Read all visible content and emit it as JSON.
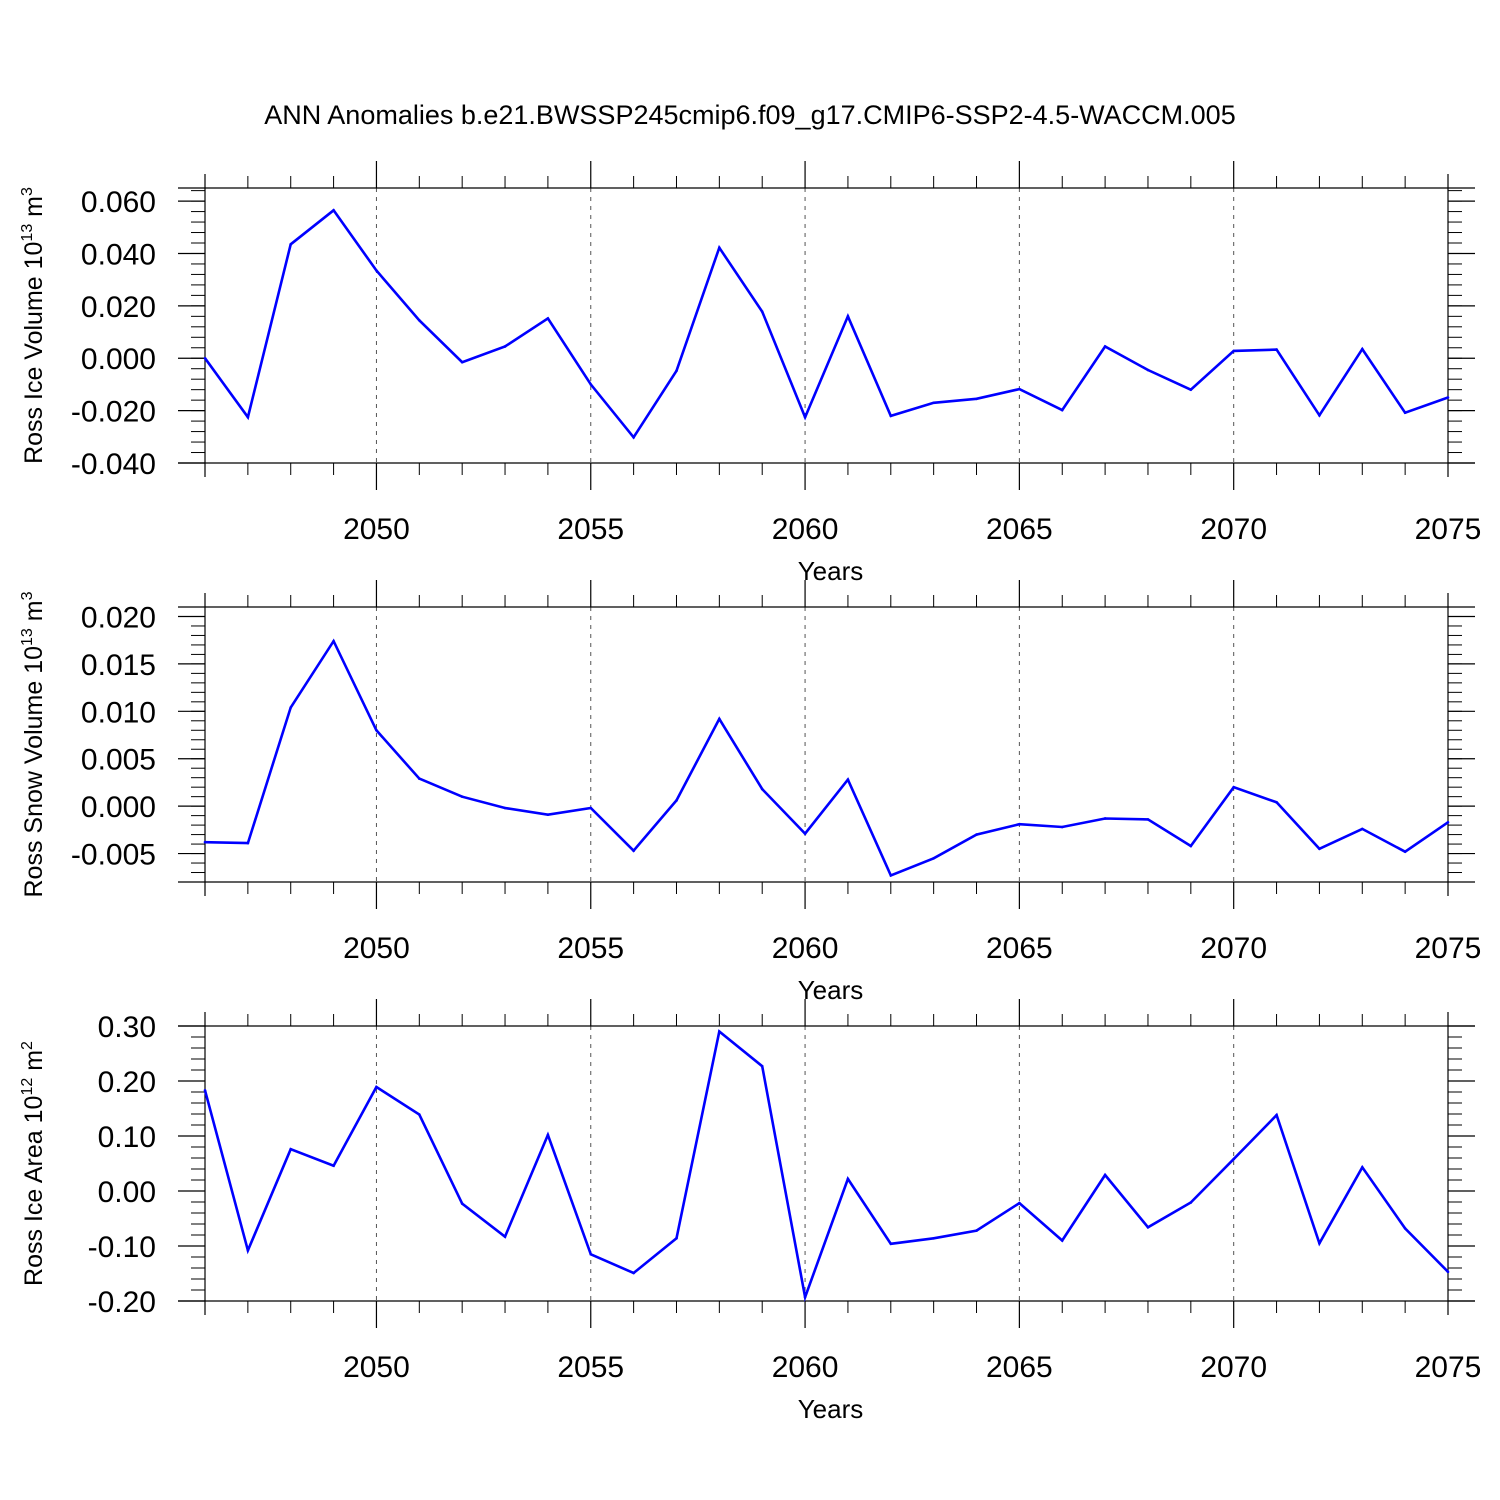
{
  "title": "ANN Anomalies b.e21.BWSSP245cmip6.f09_g17.CMIP6-SSP2-4.5-WACCM.005",
  "line_color": "#0000ff",
  "chart_data": [
    {
      "type": "line",
      "xlabel": "Years",
      "ylabel": {
        "text": "Ross Ice Volume 10",
        "exp": "13",
        "unit": " m",
        "unit_exp": "3"
      },
      "xlim": [
        2046,
        2075
      ],
      "ylim": [
        -0.04,
        0.065
      ],
      "x_ticks": [
        2050,
        2055,
        2060,
        2065,
        2070,
        2075
      ],
      "x_tick_labels": [
        "2050",
        "2055",
        "2060",
        "2065",
        "2070",
        "2075"
      ],
      "y_ticks": [
        0.06,
        0.04,
        0.02,
        0.0,
        -0.02,
        -0.04
      ],
      "y_tick_labels": [
        "0.060",
        "0.040",
        "0.020",
        "0.000",
        "-0.020",
        "-0.040"
      ],
      "grid": "vertical dashed at major x ticks",
      "x": [
        2046,
        2047,
        2048,
        2049,
        2050,
        2051,
        2052,
        2053,
        2054,
        2055,
        2056,
        2057,
        2058,
        2059,
        2060,
        2061,
        2062,
        2063,
        2064,
        2065,
        2066,
        2067,
        2068,
        2069,
        2070,
        2071,
        2072,
        2073,
        2074,
        2075
      ],
      "values": [
        0.0,
        -0.0225,
        0.0435,
        0.0565,
        0.0335,
        0.0145,
        -0.0015,
        0.0045,
        0.0152,
        -0.01,
        -0.0302,
        -0.0048,
        0.0422,
        0.0178,
        -0.0225,
        0.016,
        -0.022,
        -0.017,
        -0.0155,
        -0.0118,
        -0.0198,
        0.0045,
        -0.0045,
        -0.012,
        0.0028,
        0.0033,
        -0.0218,
        0.0035,
        -0.0208,
        -0.015
      ]
    },
    {
      "type": "line",
      "xlabel": "Years",
      "ylabel": {
        "text": "Ross Snow Volume 10",
        "exp": "13",
        "unit": " m",
        "unit_exp": "3"
      },
      "xlim": [
        2046,
        2075
      ],
      "ylim": [
        -0.008,
        0.021
      ],
      "x_ticks": [
        2050,
        2055,
        2060,
        2065,
        2070,
        2075
      ],
      "x_tick_labels": [
        "2050",
        "2055",
        "2060",
        "2065",
        "2070",
        "2075"
      ],
      "y_ticks": [
        0.02,
        0.015,
        0.01,
        0.005,
        0.0,
        -0.005
      ],
      "y_tick_labels": [
        "0.020",
        "0.015",
        "0.010",
        "0.005",
        "0.000",
        "-0.005"
      ],
      "grid": "vertical dashed at major x ticks",
      "x": [
        2046,
        2047,
        2048,
        2049,
        2050,
        2051,
        2052,
        2053,
        2054,
        2055,
        2056,
        2057,
        2058,
        2059,
        2060,
        2061,
        2062,
        2063,
        2064,
        2065,
        2066,
        2067,
        2068,
        2069,
        2070,
        2071,
        2072,
        2073,
        2074,
        2075
      ],
      "values": [
        -0.0038,
        -0.0039,
        0.0104,
        0.0174,
        0.008,
        0.0029,
        0.001,
        -0.0002,
        -0.0009,
        -0.0002,
        -0.0047,
        0.0006,
        0.0092,
        0.0018,
        -0.0029,
        0.0028,
        -0.0073,
        -0.0055,
        -0.003,
        -0.0019,
        -0.0022,
        -0.0013,
        -0.0014,
        -0.0042,
        0.002,
        0.0004,
        -0.0045,
        -0.0024,
        -0.0048,
        -0.0017
      ]
    },
    {
      "type": "line",
      "xlabel": "Years",
      "ylabel": {
        "text": "Ross Ice Area 10",
        "exp": "12",
        "unit": " m",
        "unit_exp": "2"
      },
      "xlim": [
        2046,
        2075
      ],
      "ylim": [
        -0.2,
        0.3
      ],
      "x_ticks": [
        2050,
        2055,
        2060,
        2065,
        2070,
        2075
      ],
      "x_tick_labels": [
        "2050",
        "2055",
        "2060",
        "2065",
        "2070",
        "2075"
      ],
      "y_ticks": [
        0.3,
        0.2,
        0.1,
        0.0,
        -0.1,
        -0.2
      ],
      "y_tick_labels": [
        "0.30",
        "0.20",
        "0.10",
        "0.00",
        "-0.10",
        "-0.20"
      ],
      "grid": "vertical dashed at major x ticks",
      "x": [
        2046,
        2047,
        2048,
        2049,
        2050,
        2051,
        2052,
        2053,
        2054,
        2055,
        2056,
        2057,
        2058,
        2059,
        2060,
        2061,
        2062,
        2063,
        2064,
        2065,
        2066,
        2067,
        2068,
        2069,
        2070,
        2071,
        2072,
        2073,
        2074,
        2075
      ],
      "values": [
        0.183,
        -0.108,
        0.076,
        0.046,
        0.189,
        0.139,
        -0.023,
        -0.083,
        0.102,
        -0.115,
        -0.149,
        -0.086,
        0.29,
        0.227,
        -0.193,
        0.022,
        -0.096,
        -0.086,
        -0.072,
        -0.022,
        -0.09,
        0.029,
        -0.066,
        -0.021,
        0.058,
        0.138,
        -0.095,
        0.043,
        -0.068,
        -0.147
      ]
    }
  ]
}
